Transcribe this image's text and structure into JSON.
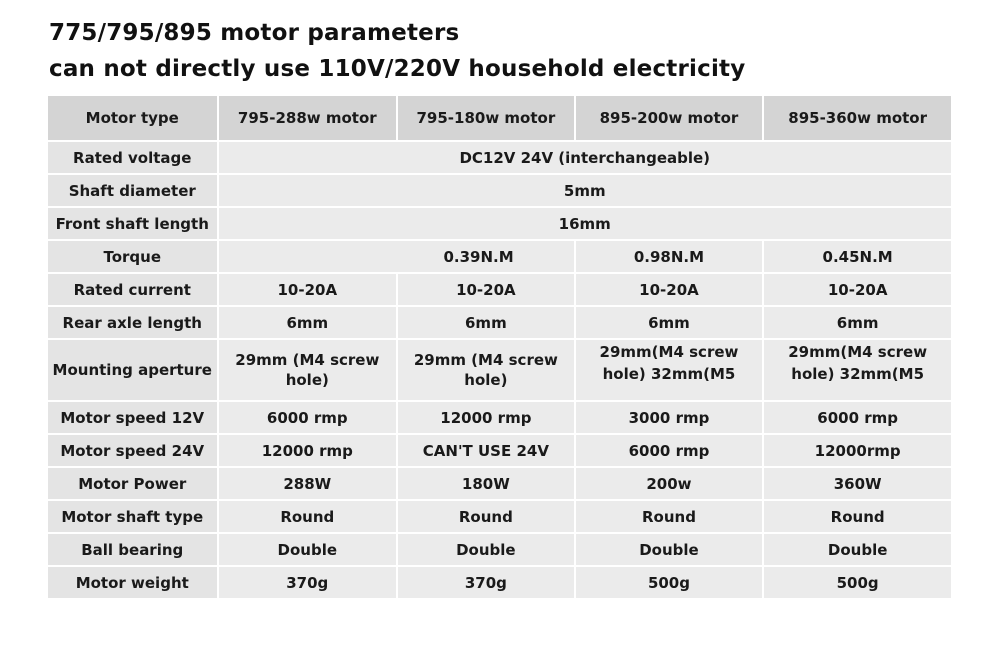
{
  "title_line1": "775/795/895 motor parameters",
  "title_line2": "can not directly use 110V/220V household electricity",
  "table": {
    "header": [
      "Motor type",
      "795-288w motor",
      "795-180w motor",
      "895-200w motor",
      "895-360w motor"
    ],
    "rated_voltage": {
      "label": "Rated voltage",
      "value": "DC12V  24V (interchangeable)"
    },
    "shaft_diameter": {
      "label": "Shaft diameter",
      "value": "5mm"
    },
    "front_shaft_length": {
      "label": "Front shaft length",
      "value": "16mm"
    },
    "torque": {
      "label": "Torque",
      "values": [
        "",
        "0.39N.M",
        "0.98N.M",
        "0.45N.M"
      ]
    },
    "rated_current": {
      "label": "Rated current",
      "values": [
        "10-20A",
        "10-20A",
        "10-20A",
        "10-20A"
      ]
    },
    "rear_axle_length": {
      "label": "Rear axle length",
      "values": [
        "6mm",
        "6mm",
        "6mm",
        "6mm"
      ]
    },
    "mounting_aperture": {
      "label": "Mounting aperture",
      "values": [
        "29mm (M4 screw hole)",
        "29mm (M4 screw hole)",
        "29mm(M4 screw hole)      32mm(M5",
        "29mm(M4 screw hole)      32mm(M5"
      ]
    },
    "motor_speed_12v": {
      "label": "Motor speed 12V",
      "values": [
        "6000 rmp",
        "12000 rmp",
        "3000 rmp",
        "6000 rmp"
      ]
    },
    "motor_speed_24v": {
      "label": "Motor speed 24V",
      "values": [
        "12000 rmp",
        "CAN'T USE 24V",
        "6000 rmp",
        "12000rmp"
      ]
    },
    "motor_power": {
      "label": "Motor Power",
      "values": [
        "288W",
        "180W",
        "200w",
        "360W"
      ]
    },
    "motor_shaft_type": {
      "label": "Motor shaft type",
      "values": [
        "Round",
        "Round",
        "Round",
        "Round"
      ]
    },
    "ball_bearing": {
      "label": "Ball bearing",
      "values": [
        "Double",
        "Double",
        "Double",
        "Double"
      ]
    },
    "motor_weight": {
      "label": "Motor weight",
      "values": [
        "370g",
        "370g",
        "500g",
        "500g"
      ]
    }
  }
}
